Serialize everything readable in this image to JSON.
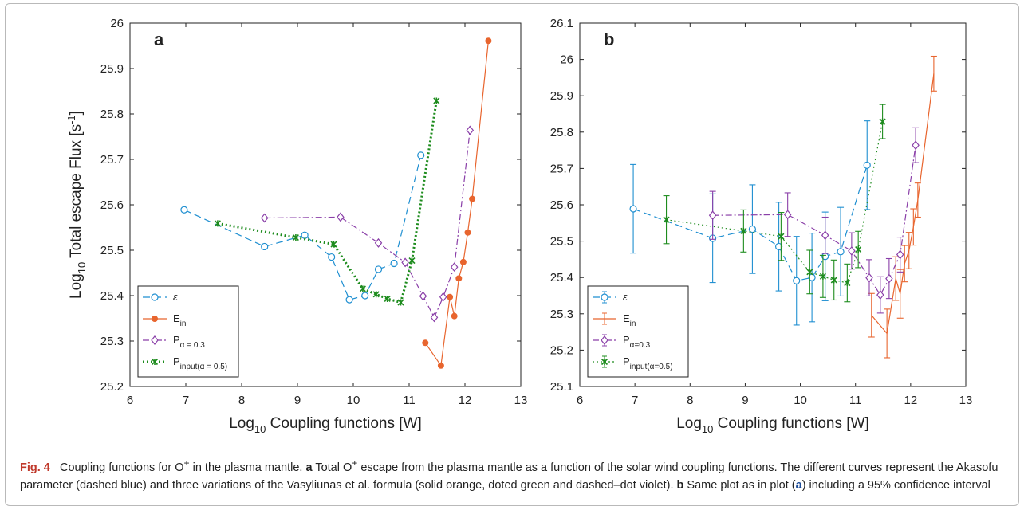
{
  "caption": {
    "label": "Fig. 4",
    "line1": "Coupling functions for O",
    "sup_plus": "+",
    "line1_rest": " in the plasma mantle.",
    "a_label": "a",
    "a_text_1": "Total O",
    "a_text_2": " escape from the plasma mantle as a function of the solar wind coupling functions. The different curves represent the Akasofu parameter (dashed blue) and three variations of the Vasyliunas et al. formula (solid orange, doted green and dashed–dot violet).",
    "b_label": "b",
    "b_text": "Same plot as in plot (",
    "b_ref": "a",
    "b_text_end": ") including a 95% confidence interval"
  },
  "chart_data": [
    {
      "type": "line",
      "panel_label": "a",
      "xlabel": "Log10 Coupling functions [W]",
      "ylabel": "Log10 Total escape Flux [s-1]",
      "xlim": [
        6,
        13
      ],
      "ylim": [
        25.2,
        26.0
      ],
      "xticks": [
        "6",
        "7",
        "8",
        "9",
        "10",
        "11",
        "12",
        "13"
      ],
      "yticks": [
        "25.2",
        "25.3",
        "25.4",
        "25.5",
        "25.6",
        "25.7",
        "25.8",
        "25.9",
        "26"
      ],
      "grid": false,
      "legend_position": "bottom-left",
      "series": [
        {
          "name": "ε",
          "style": "dashed",
          "marker": "circle",
          "color": "#1f8fd1",
          "x": [
            6.97,
            8.41,
            9.13,
            9.61,
            9.93,
            10.21,
            10.45,
            10.73,
            11.21
          ],
          "y": [
            25.589,
            25.508,
            25.533,
            25.485,
            25.391,
            25.4,
            25.458,
            25.471,
            25.709
          ]
        },
        {
          "name": "E_in",
          "style": "solid",
          "marker": "dot",
          "color": "#e8652e",
          "x": [
            11.29,
            11.57,
            11.73,
            11.81,
            11.89,
            11.97,
            12.05,
            12.13,
            12.42
          ],
          "y": [
            25.296,
            25.246,
            25.397,
            25.355,
            25.438,
            25.474,
            25.539,
            25.613,
            25.961
          ]
        },
        {
          "name": "P_α = 0.3",
          "style": "dashdot",
          "marker": "diamond",
          "color": "#8a3fa8",
          "x": [
            8.41,
            9.77,
            10.45,
            10.93,
            11.25,
            11.45,
            11.61,
            11.81,
            12.09
          ],
          "y": [
            25.571,
            25.573,
            25.516,
            25.473,
            25.399,
            25.352,
            25.397,
            25.463,
            25.764
          ]
        },
        {
          "name": "P_input(α = 0.5)",
          "style": "dotted",
          "marker": "x",
          "color": "#1e8c1e",
          "x": [
            7.57,
            8.97,
            9.65,
            10.17,
            10.41,
            10.61,
            10.85,
            11.05,
            11.49
          ],
          "y": [
            25.559,
            25.528,
            25.513,
            25.415,
            25.403,
            25.393,
            25.385,
            25.477,
            25.829
          ]
        }
      ]
    },
    {
      "type": "line",
      "panel_label": "b",
      "xlabel": "Log10 Coupling functions [W]",
      "ylabel": "",
      "xlim": [
        6,
        13
      ],
      "ylim": [
        25.1,
        26.1
      ],
      "xticks": [
        "6",
        "7",
        "8",
        "9",
        "10",
        "11",
        "12",
        "13"
      ],
      "yticks": [
        "25.1",
        "25.2",
        "25.3",
        "25.4",
        "25.5",
        "25.6",
        "25.7",
        "25.8",
        "25.9",
        "26",
        "26.1"
      ],
      "grid": false,
      "legend_position": "bottom-left",
      "error_bars": "95% confidence interval",
      "series": [
        {
          "name": "ε",
          "style": "dashed",
          "marker": "circle",
          "color": "#1f8fd1",
          "x": [
            6.97,
            8.41,
            9.13,
            9.61,
            9.93,
            10.21,
            10.45,
            10.73,
            11.21
          ],
          "y": [
            25.589,
            25.508,
            25.533,
            25.485,
            25.391,
            25.4,
            25.458,
            25.471,
            25.709
          ],
          "err": [
            0.122,
            0.122,
            0.122,
            0.122,
            0.122,
            0.122,
            0.122,
            0.122,
            0.122
          ]
        },
        {
          "name": "E_in",
          "style": "solid",
          "marker": "none",
          "color": "#e8652e",
          "x": [
            11.29,
            11.57,
            11.73,
            11.81,
            11.89,
            11.97,
            12.05,
            12.13,
            12.42
          ],
          "y": [
            25.296,
            25.246,
            25.397,
            25.355,
            25.438,
            25.474,
            25.539,
            25.613,
            25.961
          ],
          "err": [
            0.06,
            0.067,
            0.06,
            0.067,
            0.05,
            0.05,
            0.05,
            0.047,
            0.048
          ]
        },
        {
          "name": "P_α=0.3",
          "style": "dashdot",
          "marker": "diamond",
          "color": "#8a3fa8",
          "x": [
            8.41,
            9.77,
            10.45,
            10.93,
            11.25,
            11.45,
            11.61,
            11.81,
            12.09
          ],
          "y": [
            25.571,
            25.573,
            25.516,
            25.473,
            25.399,
            25.352,
            25.397,
            25.463,
            25.764
          ],
          "err": [
            0.066,
            0.06,
            0.05,
            0.05,
            0.05,
            0.05,
            0.055,
            0.048,
            0.048
          ]
        },
        {
          "name": "P_input(α=0.5)",
          "style": "dotted",
          "marker": "x",
          "color": "#1e8c1e",
          "x": [
            7.57,
            8.97,
            9.65,
            10.17,
            10.41,
            10.61,
            10.85,
            11.05,
            11.49
          ],
          "y": [
            25.559,
            25.528,
            25.513,
            25.415,
            25.403,
            25.393,
            25.385,
            25.477,
            25.829
          ],
          "err": [
            0.066,
            0.058,
            0.066,
            0.06,
            0.058,
            0.055,
            0.052,
            0.05,
            0.047
          ]
        }
      ]
    }
  ]
}
